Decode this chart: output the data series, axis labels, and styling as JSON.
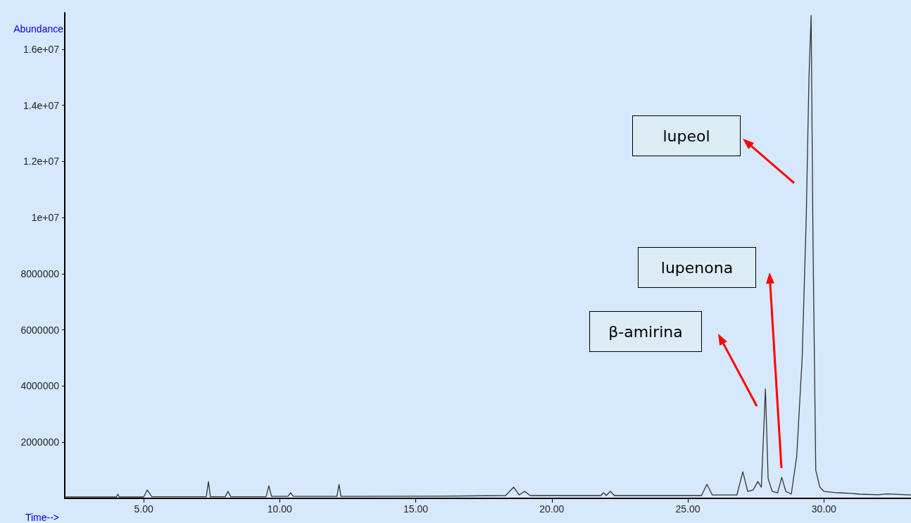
{
  "chart_data": {
    "type": "line",
    "xlabel": "Time-->",
    "ylabel": "Abundance",
    "color": "#333333",
    "xlim": [
      2.1,
      33.2
    ],
    "xticks": [
      {
        "value": 5,
        "label": "5.00"
      },
      {
        "value": 10,
        "label": "10.00"
      },
      {
        "value": 15,
        "label": "15.00"
      },
      {
        "value": 20,
        "label": "20.00"
      },
      {
        "value": 25,
        "label": "25.00"
      },
      {
        "value": 30,
        "label": "30.00"
      }
    ],
    "ylim": [
      0,
      17300000
    ],
    "yticks": [
      2000000,
      4000000,
      6000000,
      8000000,
      {
        "value": 10000000,
        "label": "1e+07"
      },
      {
        "value": 12000000,
        "label": "1.2e+07"
      },
      {
        "value": 14000000,
        "label": "1.4e+07"
      },
      {
        "value": 16000000,
        "label": "1.6e+07"
      }
    ],
    "grid": false,
    "marker": "none",
    "line_style": "solid",
    "x": [
      2.1,
      4.0,
      4.05,
      4.1,
      5.0,
      5.13,
      5.3,
      7.3,
      7.38,
      7.45,
      8.0,
      8.1,
      8.2,
      9.5,
      9.6,
      9.7,
      10.3,
      10.4,
      10.5,
      12.1,
      12.18,
      12.25,
      16.0,
      18.3,
      18.6,
      18.8,
      19.0,
      19.2,
      21.8,
      21.9,
      22.0,
      22.15,
      22.3,
      25.5,
      25.7,
      25.9,
      26.8,
      27.02,
      27.2,
      27.4,
      27.57,
      27.7,
      27.85,
      27.95,
      28.1,
      28.3,
      28.45,
      28.6,
      28.8,
      29.0,
      29.2,
      29.35,
      29.45,
      29.53,
      29.6,
      29.7,
      29.85,
      30.0,
      30.5,
      31.0,
      31.3,
      32.0,
      32.3,
      33.2
    ],
    "values": [
      50000,
      50000,
      150000,
      50000,
      50000,
      300000,
      60000,
      60000,
      600000,
      60000,
      60000,
      250000,
      60000,
      60000,
      450000,
      70000,
      70000,
      200000,
      70000,
      70000,
      500000,
      70000,
      80000,
      100000,
      400000,
      120000,
      250000,
      100000,
      100000,
      200000,
      100000,
      250000,
      100000,
      100000,
      500000,
      120000,
      120000,
      950000,
      250000,
      300000,
      600000,
      400000,
      3900000,
      700000,
      250000,
      200000,
      750000,
      250000,
      150000,
      1500000,
      5000000,
      10000000,
      15000000,
      17200000,
      9000000,
      1000000,
      400000,
      250000,
      200000,
      180000,
      150000,
      130000,
      160000,
      120000
    ],
    "annotations": [
      "lupeol",
      "lupenona",
      "β-amirina"
    ]
  }
}
